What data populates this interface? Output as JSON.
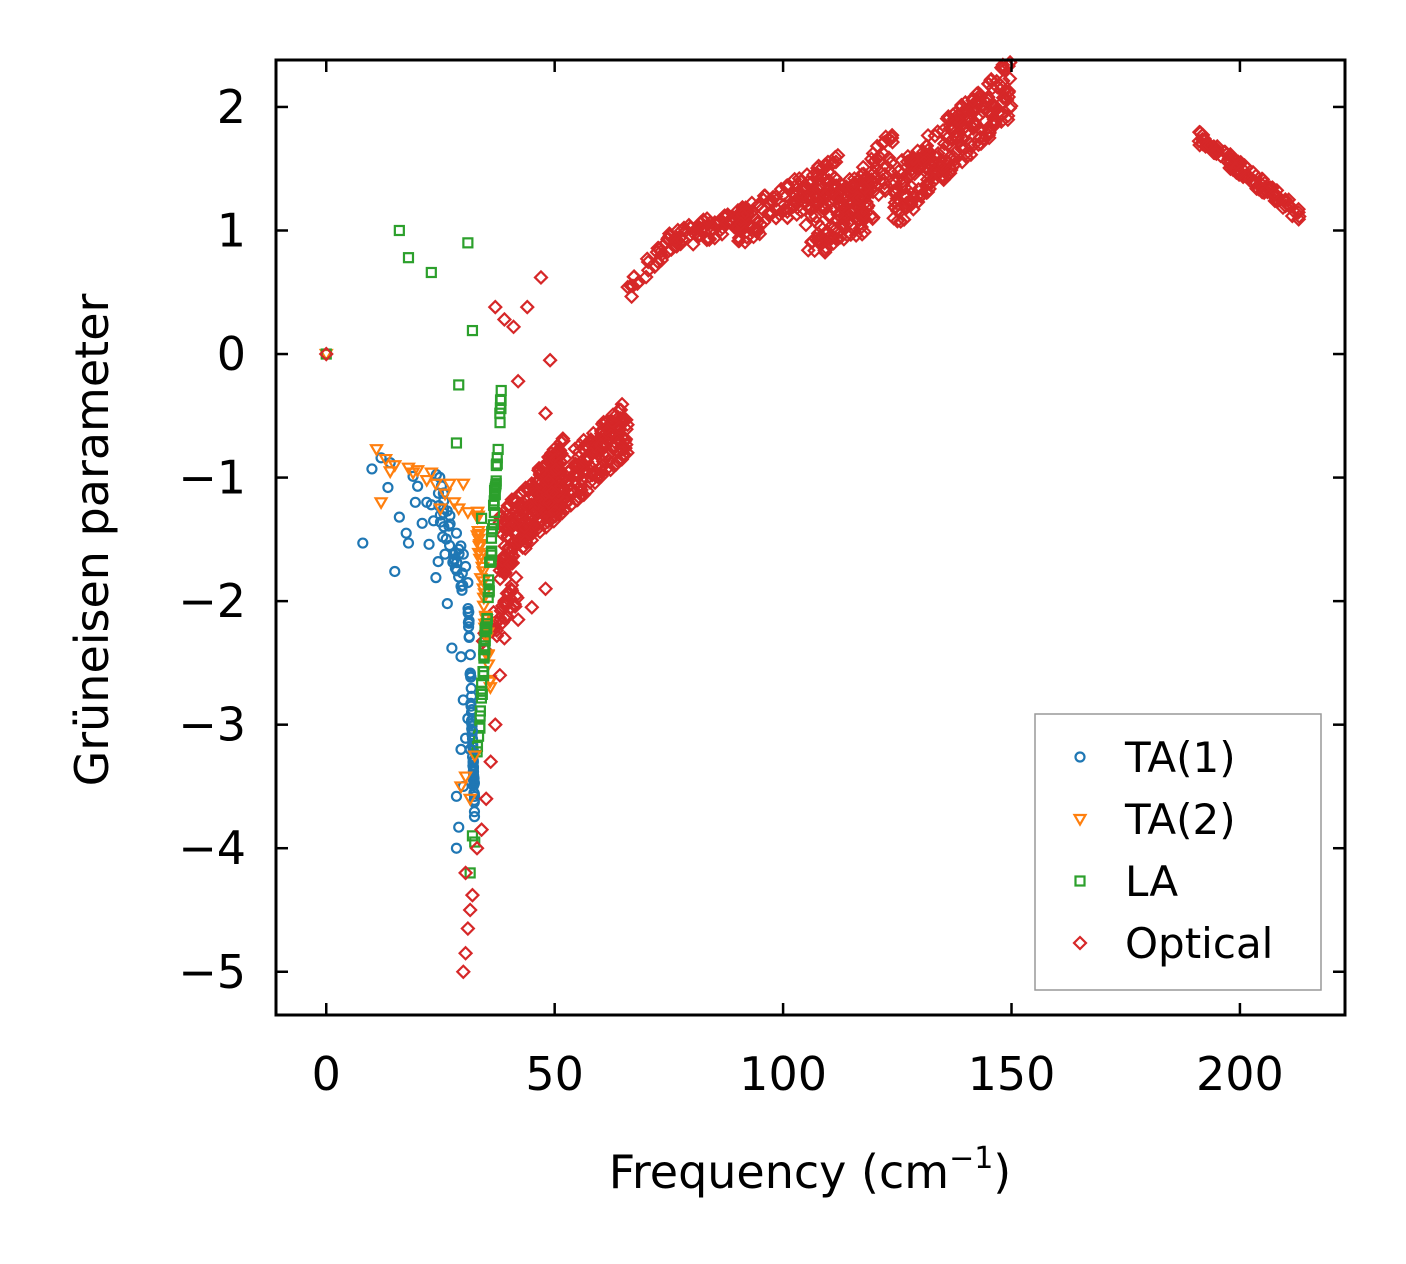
{
  "chart_data": {
    "type": "scatter",
    "title": "",
    "xlabel": "Frequency (cm",
    "xlabel_sup": "−1",
    "xlabel_tail": ")",
    "ylabel": "Grüneisen parameter",
    "xlim": [
      -11,
      223
    ],
    "ylim": [
      -5.35,
      2.38
    ],
    "x_ticks": [
      0,
      50,
      100,
      150,
      200
    ],
    "x_tick_labels": [
      "0",
      "50",
      "100",
      "150",
      "200"
    ],
    "y_ticks": [
      -5,
      -4,
      -3,
      -2,
      -1,
      0,
      1,
      2
    ],
    "y_tick_labels": [
      "−5",
      "−4",
      "−3",
      "−2",
      "−1",
      "0",
      "1",
      "2"
    ],
    "grid": false,
    "legend_position": "bottom-right",
    "series": [
      {
        "name": "TA(1)",
        "marker": "circle",
        "color": "#1f77b4",
        "points": [
          [
            0,
            0
          ],
          [
            8,
            -1.53
          ],
          [
            10,
            -0.93
          ],
          [
            12,
            -0.84
          ],
          [
            13.5,
            -1.08
          ],
          [
            14,
            -0.88
          ],
          [
            15,
            -1.76
          ],
          [
            16,
            -1.32
          ],
          [
            17.5,
            -1.45
          ],
          [
            18,
            -1.53
          ],
          [
            19,
            -0.99
          ],
          [
            19.5,
            -1.2
          ],
          [
            20,
            -1.07
          ],
          [
            21,
            -1.37
          ],
          [
            22,
            -1.2
          ],
          [
            22.5,
            -1.54
          ],
          [
            23,
            -1.22
          ],
          [
            23.5,
            -1.35
          ],
          [
            24,
            -1.81
          ],
          [
            24.5,
            -1.68
          ],
          [
            25,
            -1.36
          ],
          [
            25.5,
            -1.48
          ],
          [
            26,
            -1.62
          ],
          [
            26.5,
            -2.02
          ],
          [
            27,
            -1.55
          ],
          [
            27.5,
            -2.38
          ],
          [
            28,
            -1.67
          ],
          [
            28.5,
            -1.45
          ],
          [
            29,
            -1.58
          ],
          [
            29.5,
            -1.88
          ],
          [
            30,
            -1.62
          ],
          [
            30.5,
            -1.72
          ],
          [
            31,
            -1.85
          ],
          [
            28.5,
            -3.58
          ],
          [
            29,
            -3.83
          ],
          [
            28.5,
            -4.0
          ],
          [
            29.5,
            -2.45
          ],
          [
            30,
            -2.8
          ],
          [
            30.5,
            -3.11
          ],
          [
            29.5,
            -3.2
          ],
          [
            30,
            -3.5
          ],
          [
            31,
            -2.95
          ],
          [
            31.5,
            -3.2
          ],
          [
            32,
            -3.05
          ]
        ]
      },
      {
        "name": "TA(2)",
        "marker": "triangle",
        "color": "#ff7f0e",
        "points": [
          [
            0,
            0
          ],
          [
            11,
            -0.77
          ],
          [
            12,
            -1.2
          ],
          [
            13,
            -0.85
          ],
          [
            14,
            -0.95
          ],
          [
            15,
            -0.9
          ],
          [
            18,
            -0.92
          ],
          [
            19,
            -0.96
          ],
          [
            20,
            -0.94
          ],
          [
            22,
            -1.02
          ],
          [
            23,
            -0.96
          ],
          [
            24,
            -1.05
          ],
          [
            25,
            -1.25
          ],
          [
            26,
            -1.13
          ],
          [
            27,
            -1.05
          ],
          [
            28,
            -1.2
          ],
          [
            29,
            -1.25
          ],
          [
            30,
            -1.05
          ],
          [
            31,
            -1.28
          ],
          [
            29.5,
            -3.5
          ],
          [
            30.5,
            -3.42
          ],
          [
            31.5,
            -3.6
          ],
          [
            32.5,
            -3.25
          ]
        ]
      },
      {
        "name": "LA",
        "marker": "square",
        "color": "#2ca02c",
        "points": [
          [
            0,
            0
          ],
          [
            16,
            1.0
          ],
          [
            18,
            0.78
          ],
          [
            23,
            0.66
          ],
          [
            31,
            0.9
          ],
          [
            32,
            0.19
          ],
          [
            29,
            -0.25
          ],
          [
            28.5,
            -0.72
          ],
          [
            34,
            -1.33
          ],
          [
            31.5,
            -4.2
          ],
          [
            32,
            -3.9
          ],
          [
            32.5,
            -3.95
          ]
        ]
      },
      {
        "name": "Optical",
        "marker": "diamond",
        "color": "#d62728",
        "points": [
          [
            0,
            0
          ],
          [
            37,
            0.38
          ],
          [
            39,
            0.28
          ],
          [
            41,
            0.22
          ],
          [
            44,
            0.38
          ],
          [
            47,
            0.62
          ],
          [
            49,
            -0.05
          ],
          [
            48,
            -0.48
          ],
          [
            42,
            -0.22
          ],
          [
            30,
            -5.0
          ],
          [
            30.5,
            -4.85
          ],
          [
            31,
            -4.65
          ],
          [
            31.5,
            -4.5
          ],
          [
            32,
            -4.38
          ],
          [
            30.5,
            -4.2
          ],
          [
            33,
            -4.0
          ],
          [
            34,
            -3.85
          ],
          [
            35,
            -3.6
          ],
          [
            36,
            -3.3
          ],
          [
            37,
            -3.0
          ],
          [
            38,
            -2.6
          ],
          [
            39,
            -2.3
          ],
          [
            42,
            -2.15
          ],
          [
            45,
            -2.05
          ],
          [
            48,
            -1.9
          ]
        ]
      }
    ]
  }
}
